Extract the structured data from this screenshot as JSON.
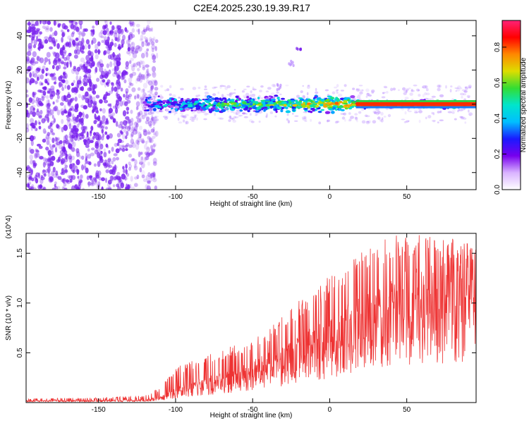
{
  "title": "C2E4.2025.230.19.39.R17",
  "colors": {
    "signal_line": "#ee3333",
    "scatter_base": "#7a22ee",
    "colorbar_stops": [
      "#ffffff",
      "#d9b3ff",
      "#7700ee",
      "#1a1aff",
      "#00bfff",
      "#00e5cc",
      "#33dd33",
      "#dddd00",
      "#ff8800",
      "#ff0000",
      "#ff2277"
    ]
  },
  "chart_data": [
    {
      "type": "heatmap",
      "title": "C2E4.2025.230.19.39.R17",
      "xlabel": "Height of straight line (km)",
      "ylabel": "Frequency (Hz)",
      "xlim": [
        -197,
        95
      ],
      "ylim": [
        -50,
        49
      ],
      "x_ticks": [
        -150,
        -100,
        -50,
        0,
        50
      ],
      "y_ticks": [
        -40,
        -20,
        0,
        20,
        40
      ],
      "colorbar": {
        "label": "Normalized spectral amplitude",
        "range": [
          0,
          0.95
        ],
        "ticks": [
          "0.0",
          "0.2",
          "0.4",
          "0.6",
          "0.8"
        ]
      },
      "features": [
        {
          "name": "broadband noise",
          "x_range": [
            -197,
            -120
          ],
          "frequency_range": [
            -50,
            49
          ],
          "amplitude": 0.15
        },
        {
          "name": "signal band",
          "x_range": [
            -120,
            95
          ],
          "center_frequency": 0,
          "amplitude_start": 0.3,
          "amplitude_end": 0.95
        },
        {
          "name": "drifting feature",
          "x_points": [
            -33,
            -25,
            -20
          ],
          "frequency_points": [
            10,
            24,
            33
          ]
        }
      ],
      "grid": false
    },
    {
      "type": "line",
      "xlabel": "Height of straight line (km)",
      "ylabel": "SNR (10 * v/v)",
      "multiplier": "(x10^4)",
      "xlim": [
        -197,
        95
      ],
      "ylim": [
        0,
        17000
      ],
      "x_ticks": [
        -150,
        -100,
        -50,
        0,
        50
      ],
      "y_ticks": [
        "0.5",
        "1.0",
        "1.5"
      ],
      "trend": {
        "x": [
          -197,
          -150,
          -120,
          -110,
          -100,
          -90,
          -80,
          -70,
          -60,
          -50,
          -40,
          -30,
          -20,
          -10,
          0,
          10,
          20,
          30,
          40,
          50,
          60,
          70,
          80,
          90,
          95
        ],
        "mean": [
          200,
          200,
          250,
          500,
          1200,
          1700,
          2100,
          2500,
          2900,
          3400,
          4000,
          4600,
          5300,
          6200,
          7000,
          7800,
          8600,
          9400,
          10000,
          10600,
          11000,
          11200,
          11300,
          11200,
          11000
        ],
        "peak": [
          400,
          500,
          700,
          1500,
          3500,
          4300,
          4700,
          5300,
          5900,
          6400,
          7300,
          8900,
          10300,
          11200,
          12800,
          13900,
          15000,
          16300,
          16900,
          16900,
          16800,
          16800,
          16500,
          16000,
          15500
        ]
      },
      "grid": false
    }
  ]
}
